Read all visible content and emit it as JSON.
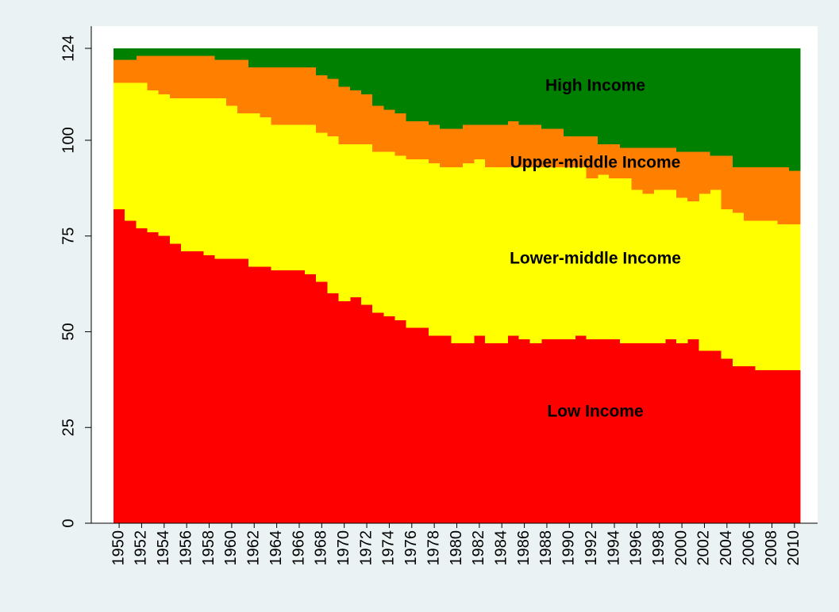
{
  "chart_data": {
    "type": "stacked-bar",
    "categories": [
      "1950",
      null,
      "1952",
      null,
      "1954",
      null,
      "1956",
      null,
      "1958",
      null,
      "1960",
      null,
      "1962",
      null,
      "1964",
      null,
      "1966",
      null,
      "1968",
      null,
      "1970",
      null,
      "1972",
      null,
      "1974",
      null,
      "1976",
      null,
      "1978",
      null,
      "1980",
      null,
      "1982",
      null,
      "1984",
      null,
      "1986",
      null,
      "1988",
      null,
      "1990",
      null,
      "1992",
      null,
      "1994",
      null,
      "1996",
      null,
      "1998",
      null,
      "2000",
      null,
      "2002",
      null,
      "2004",
      null,
      "2006",
      null,
      "2008",
      null,
      "2010"
    ],
    "series": [
      {
        "name": "Low Income",
        "color": "#ff0000",
        "values": [
          82,
          79,
          77,
          76,
          75,
          73,
          71,
          71,
          70,
          69,
          69,
          69,
          67,
          67,
          66,
          66,
          66,
          65,
          63,
          60,
          58,
          59,
          57,
          55,
          54,
          53,
          51,
          51,
          49,
          49,
          47,
          47,
          49,
          47,
          47,
          49,
          48,
          47,
          48,
          48,
          48,
          49,
          48,
          48,
          48,
          47,
          47,
          47,
          47,
          48,
          47,
          48,
          45,
          45,
          43,
          41,
          41,
          40,
          40,
          40,
          40
        ]
      },
      {
        "name": "Lower-middle Income",
        "color": "#ffff00",
        "values": [
          33,
          36,
          38,
          37,
          37,
          38,
          40,
          40,
          41,
          42,
          40,
          38,
          40,
          39,
          38,
          38,
          38,
          39,
          39,
          41,
          41,
          40,
          42,
          42,
          43,
          43,
          44,
          44,
          45,
          44,
          46,
          47,
          46,
          46,
          46,
          44,
          45,
          46,
          45,
          45,
          45,
          44,
          42,
          43,
          42,
          43,
          40,
          39,
          40,
          39,
          38,
          36,
          41,
          42,
          39,
          40,
          38,
          39,
          39,
          38,
          38
        ]
      },
      {
        "name": "Upper-middle Income",
        "color": "#ff8000",
        "values": [
          6,
          6,
          7,
          9,
          10,
          11,
          11,
          11,
          11,
          10,
          12,
          14,
          12,
          13,
          15,
          15,
          15,
          15,
          15,
          15,
          15,
          14,
          13,
          12,
          11,
          11,
          10,
          10,
          10,
          10,
          10,
          10,
          9,
          11,
          11,
          12,
          11,
          11,
          10,
          10,
          8,
          8,
          11,
          8,
          9,
          8,
          11,
          12,
          11,
          11,
          12,
          13,
          11,
          9,
          14,
          12,
          14,
          14,
          14,
          15,
          14
        ]
      },
      {
        "name": "High Income",
        "color": "#008000",
        "values": [
          3,
          3,
          2,
          2,
          2,
          2,
          2,
          2,
          2,
          3,
          3,
          3,
          5,
          5,
          5,
          5,
          5,
          5,
          7,
          8,
          10,
          11,
          12,
          15,
          16,
          17,
          19,
          19,
          20,
          21,
          21,
          20,
          20,
          20,
          20,
          19,
          20,
          20,
          21,
          21,
          23,
          23,
          23,
          25,
          25,
          26,
          26,
          26,
          26,
          26,
          27,
          27,
          27,
          28,
          28,
          31,
          31,
          31,
          31,
          31,
          32
        ]
      }
    ],
    "ylim": [
      0,
      124
    ],
    "yticks": [
      0,
      25,
      50,
      75,
      100,
      124
    ]
  }
}
